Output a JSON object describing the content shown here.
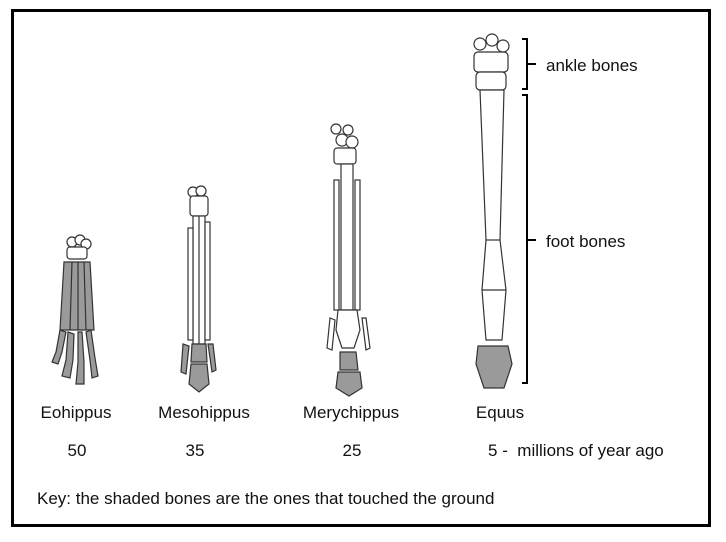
{
  "colors": {
    "shaded": "#9a9a9a",
    "bone_outline": "#333333",
    "frame": "#000000"
  },
  "annotations": {
    "ankle": "ankle bones",
    "foot": "foot bones"
  },
  "species": [
    {
      "name": "Eohippus",
      "age": "50"
    },
    {
      "name": "Mesohippus",
      "age": "35"
    },
    {
      "name": "Merychippus",
      "age": "25"
    },
    {
      "name": "Equus",
      "age": "5"
    }
  ],
  "age_unit": " -  millions of year ago",
  "key": "Key: the shaded bones are the ones that touched the ground"
}
